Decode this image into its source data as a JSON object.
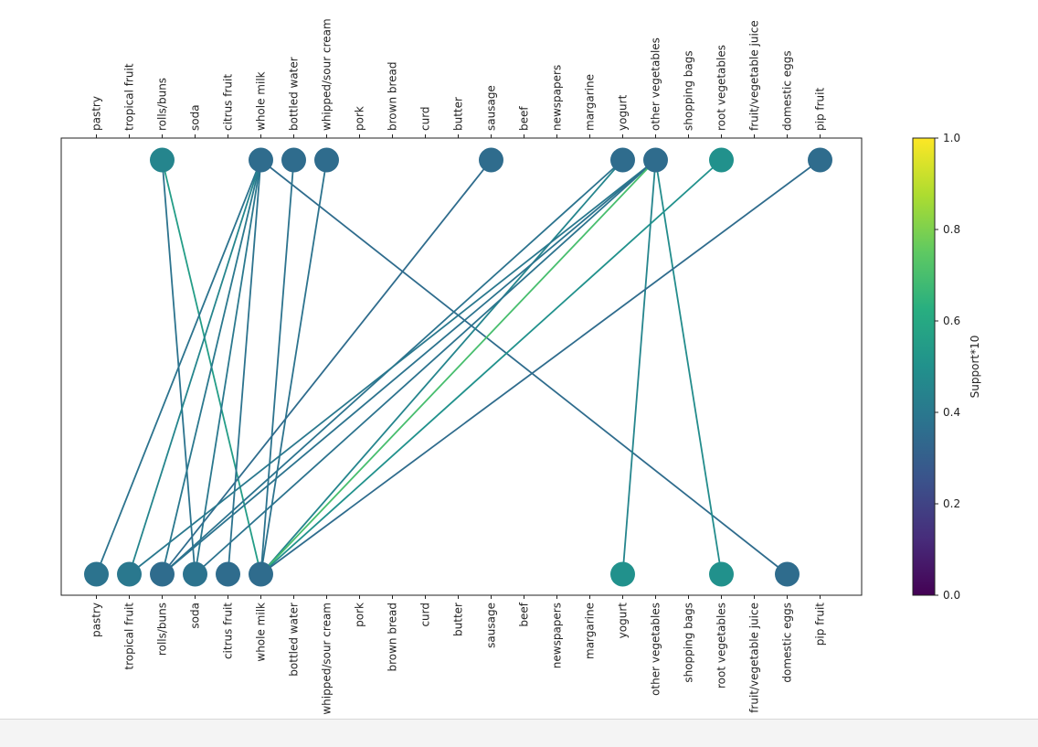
{
  "chart_data": {
    "type": "bipartite-network",
    "title": "",
    "items": [
      "pastry",
      "tropical fruit",
      "rolls/buns",
      "soda",
      "citrus fruit",
      "whole milk",
      "bottled water",
      "whipped/sour cream",
      "pork",
      "brown bread",
      "curd",
      "butter",
      "sausage",
      "beef",
      "newspapers",
      "margarine",
      "yogurt",
      "other vegetables",
      "shopping bags",
      "root vegetables",
      "fruit/vegetable juice",
      "domestic eggs",
      "pip fruit"
    ],
    "top_axis_role": "antecedents",
    "bottom_axis_role": "consequents",
    "top_nodes": [
      {
        "item": "rolls/buns",
        "support10": 0.45
      },
      {
        "item": "whole milk",
        "support10": 0.35
      },
      {
        "item": "bottled water",
        "support10": 0.35
      },
      {
        "item": "whipped/sour cream",
        "support10": 0.35
      },
      {
        "item": "sausage",
        "support10": 0.35
      },
      {
        "item": "yogurt",
        "support10": 0.35
      },
      {
        "item": "other vegetables",
        "support10": 0.35
      },
      {
        "item": "root vegetables",
        "support10": 0.5
      },
      {
        "item": "pip fruit",
        "support10": 0.35
      }
    ],
    "bottom_nodes": [
      {
        "item": "pastry",
        "support10": 0.38
      },
      {
        "item": "tropical fruit",
        "support10": 0.4
      },
      {
        "item": "rolls/buns",
        "support10": 0.35
      },
      {
        "item": "soda",
        "support10": 0.38
      },
      {
        "item": "citrus fruit",
        "support10": 0.35
      },
      {
        "item": "whole milk",
        "support10": 0.35
      },
      {
        "item": "yogurt",
        "support10": 0.5
      },
      {
        "item": "root vegetables",
        "support10": 0.5
      },
      {
        "item": "domestic eggs",
        "support10": 0.35
      }
    ],
    "edges": [
      {
        "from": "rolls/buns",
        "to": "soda",
        "support10": 0.38
      },
      {
        "from": "rolls/buns",
        "to": "whole milk",
        "support10": 0.55
      },
      {
        "from": "whole milk",
        "to": "pastry",
        "support10": 0.38
      },
      {
        "from": "whole milk",
        "to": "tropical fruit",
        "support10": 0.45
      },
      {
        "from": "whole milk",
        "to": "rolls/buns",
        "support10": 0.4
      },
      {
        "from": "whole milk",
        "to": "soda",
        "support10": 0.4
      },
      {
        "from": "whole milk",
        "to": "citrus fruit",
        "support10": 0.38
      },
      {
        "from": "whole milk",
        "to": "domestic eggs",
        "support10": 0.35
      },
      {
        "from": "bottled water",
        "to": "whole milk",
        "support10": 0.38
      },
      {
        "from": "whipped/sour cream",
        "to": "whole milk",
        "support10": 0.38
      },
      {
        "from": "sausage",
        "to": "rolls/buns",
        "support10": 0.35
      },
      {
        "from": "yogurt",
        "to": "rolls/buns",
        "support10": 0.38
      },
      {
        "from": "yogurt",
        "to": "whole milk",
        "support10": 0.45
      },
      {
        "from": "other vegetables",
        "to": "tropical fruit",
        "support10": 0.4
      },
      {
        "from": "other vegetables",
        "to": "rolls/buns",
        "support10": 0.38
      },
      {
        "from": "other vegetables",
        "to": "soda",
        "support10": 0.38
      },
      {
        "from": "other vegetables",
        "to": "whole milk",
        "support10": 0.7
      },
      {
        "from": "other vegetables",
        "to": "yogurt",
        "support10": 0.45
      },
      {
        "from": "other vegetables",
        "to": "root vegetables",
        "support10": 0.48
      },
      {
        "from": "root vegetables",
        "to": "whole milk",
        "support10": 0.5
      },
      {
        "from": "pip fruit",
        "to": "whole milk",
        "support10": 0.35
      }
    ],
    "colorbar": {
      "label": "Support*10",
      "min": 0.0,
      "max": 1.0,
      "ticks": [
        "0.0",
        "0.2",
        "0.4",
        "0.6",
        "0.8",
        "1.0"
      ],
      "colormap": "viridis"
    }
  }
}
